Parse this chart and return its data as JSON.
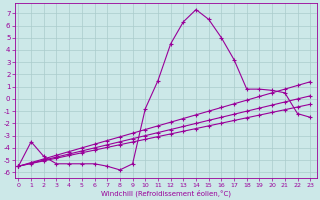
{
  "xlabel": "Windchill (Refroidissement éolien,°C)",
  "background_color": "#cce8e8",
  "grid_color": "#aacccc",
  "line_color": "#990099",
  "x_ticks": [
    0,
    1,
    2,
    3,
    4,
    5,
    6,
    7,
    8,
    9,
    10,
    11,
    12,
    13,
    14,
    15,
    16,
    17,
    18,
    19,
    20,
    21,
    22,
    23
  ],
  "y_ticks": [
    -6,
    -5,
    -4,
    -3,
    -2,
    -1,
    0,
    1,
    2,
    3,
    4,
    5,
    6,
    7
  ],
  "ylim": [
    -6.5,
    7.8
  ],
  "xlim": [
    -0.3,
    23.5
  ],
  "series1_x": [
    0,
    1,
    2,
    3,
    4,
    5,
    6,
    7,
    8,
    9,
    10,
    11,
    12,
    13,
    14,
    15,
    16,
    17,
    18,
    19,
    20,
    21,
    22,
    23
  ],
  "series1_y": [
    -5.5,
    -3.5,
    -4.7,
    -5.3,
    -5.3,
    -5.3,
    -5.3,
    -5.5,
    -5.8,
    -5.3,
    -0.8,
    1.5,
    4.5,
    6.3,
    7.3,
    6.5,
    5.0,
    3.2,
    0.8,
    0.8,
    0.7,
    0.5,
    -1.2,
    -1.5
  ],
  "series2_x": [
    0,
    1,
    2,
    3,
    4,
    5,
    6,
    7,
    8,
    9,
    10,
    11,
    12,
    13,
    14,
    15,
    16,
    17,
    18,
    19,
    20,
    21,
    22,
    23
  ],
  "series2_y": [
    -5.5,
    -5.2,
    -4.9,
    -4.6,
    -4.3,
    -4.0,
    -3.7,
    -3.4,
    -3.1,
    -2.8,
    -2.5,
    -2.2,
    -1.9,
    -1.6,
    -1.3,
    -1.0,
    -0.7,
    -0.4,
    -0.1,
    0.2,
    0.5,
    0.8,
    1.1,
    1.4
  ],
  "series3_x": [
    0,
    1,
    2,
    3,
    4,
    5,
    6,
    7,
    8,
    9,
    10,
    11,
    12,
    13,
    14,
    15,
    16,
    17,
    18,
    19,
    20,
    21,
    22,
    23
  ],
  "series3_y": [
    -5.5,
    -5.25,
    -5.0,
    -4.75,
    -4.5,
    -4.25,
    -4.0,
    -3.75,
    -3.5,
    -3.25,
    -3.0,
    -2.75,
    -2.5,
    -2.25,
    -2.0,
    -1.75,
    -1.5,
    -1.25,
    -1.0,
    -0.75,
    -0.5,
    -0.25,
    0.0,
    0.25
  ],
  "series4_x": [
    0,
    1,
    2,
    3,
    4,
    5,
    6,
    7,
    8,
    9,
    10,
    11,
    12,
    13,
    14,
    15,
    16,
    17,
    18,
    19,
    20,
    21,
    22,
    23
  ],
  "series4_y": [
    -5.5,
    -5.28,
    -5.06,
    -4.84,
    -4.62,
    -4.4,
    -4.18,
    -3.96,
    -3.74,
    -3.52,
    -3.3,
    -3.08,
    -2.86,
    -2.64,
    -2.42,
    -2.2,
    -1.98,
    -1.76,
    -1.54,
    -1.32,
    -1.1,
    -0.88,
    -0.66,
    -0.44
  ]
}
